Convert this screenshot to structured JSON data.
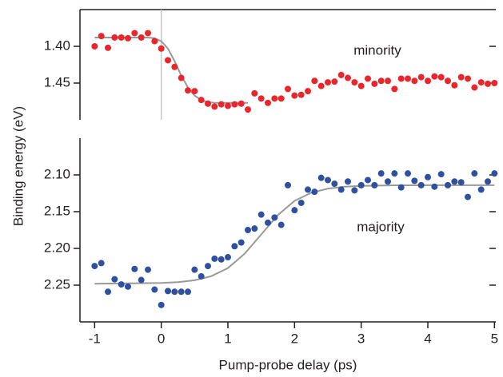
{
  "chart_data": [
    {
      "type": "scatter",
      "y_label": "Binding energy (eV)",
      "annotation": "minority",
      "invert_y": true,
      "xlim": [
        -1.22,
        5.02
      ],
      "ylim": [
        1.35,
        1.5
      ],
      "yticks": [
        {
          "value": 1.4,
          "label": "1.40"
        },
        1.45
      ],
      "vline_x": 0,
      "x": [
        -1.0,
        -0.9,
        -0.8,
        -0.7,
        -0.6,
        -0.5,
        -0.4,
        -0.3,
        -0.2,
        -0.1,
        0.0,
        0.1,
        0.2,
        0.3,
        0.4,
        0.5,
        0.6,
        0.7,
        0.8,
        0.9,
        1.0,
        1.1,
        1.2,
        1.3,
        1.4,
        1.5,
        1.6,
        1.7,
        1.8,
        1.9,
        2.0,
        2.1,
        2.2,
        2.3,
        2.4,
        2.5,
        2.6,
        2.7,
        2.8,
        2.9,
        3.0,
        3.1,
        3.2,
        3.3,
        3.4,
        3.5,
        3.6,
        3.7,
        3.8,
        3.9,
        4.0,
        4.1,
        4.2,
        4.3,
        4.4,
        4.5,
        4.6,
        4.7,
        4.8,
        4.9,
        5.0
      ],
      "series": [
        {
          "color": "#e8262b",
          "values": [
            1.4,
            1.386,
            1.402,
            1.388,
            1.388,
            1.389,
            1.382,
            1.388,
            1.382,
            1.393,
            1.403,
            1.419,
            1.428,
            1.443,
            1.46,
            1.461,
            1.473,
            1.478,
            1.482,
            1.479,
            1.481,
            1.479,
            1.478,
            1.486,
            1.464,
            1.471,
            1.477,
            1.471,
            1.471,
            1.458,
            1.467,
            1.466,
            1.461,
            1.447,
            1.454,
            1.449,
            1.448,
            1.439,
            1.443,
            1.449,
            1.454,
            1.444,
            1.451,
            1.447,
            1.447,
            1.458,
            1.444,
            1.444,
            1.447,
            1.442,
            1.447,
            1.441,
            1.442,
            1.447,
            1.453,
            1.442,
            1.444,
            1.456,
            1.449,
            1.451,
            1.45
          ]
        }
      ],
      "fit": {
        "color": "#999999",
        "x": [
          -1.0,
          -0.2,
          -0.1,
          0.0,
          0.1,
          0.2,
          0.3,
          0.4,
          0.5,
          0.6,
          0.7,
          0.8,
          1.3
        ],
        "values": [
          1.388,
          1.388,
          1.389,
          1.393,
          1.403,
          1.42,
          1.44,
          1.456,
          1.467,
          1.473,
          1.476,
          1.477,
          1.477
        ]
      }
    },
    {
      "type": "scatter",
      "x_label": "Pump-probe delay (ps)",
      "annotation": "majority",
      "invert_y": true,
      "xlim": [
        -1.22,
        5.02
      ],
      "xticks": [
        -1,
        0,
        1,
        2,
        3,
        4,
        5
      ],
      "ylim": [
        2.05,
        2.3
      ],
      "yticks": [
        {
          "value": 2.1,
          "label": "2.10"
        },
        2.15,
        {
          "value": 2.2,
          "label": "2.20"
        },
        2.25
      ],
      "x": [
        -1.0,
        -0.9,
        -0.8,
        -0.7,
        -0.6,
        -0.5,
        -0.4,
        -0.3,
        -0.2,
        -0.1,
        0.0,
        0.1,
        0.2,
        0.3,
        0.4,
        0.5,
        0.6,
        0.7,
        0.8,
        0.9,
        1.0,
        1.1,
        1.2,
        1.3,
        1.4,
        1.5,
        1.6,
        1.7,
        1.8,
        1.9,
        2.0,
        2.1,
        2.2,
        2.3,
        2.4,
        2.5,
        2.6,
        2.7,
        2.8,
        2.9,
        3.0,
        3.1,
        3.2,
        3.3,
        3.4,
        3.5,
        3.6,
        3.7,
        3.8,
        3.9,
        4.0,
        4.1,
        4.2,
        4.3,
        4.4,
        4.5,
        4.6,
        4.7,
        4.8,
        4.9,
        5.0
      ],
      "series": [
        {
          "color": "#2f4f9f",
          "values": [
            2.224,
            2.22,
            2.259,
            2.242,
            2.249,
            2.252,
            2.228,
            2.243,
            2.229,
            2.256,
            2.277,
            2.258,
            2.259,
            2.259,
            2.259,
            2.229,
            2.238,
            2.224,
            2.214,
            2.215,
            2.212,
            2.197,
            2.192,
            2.175,
            2.173,
            2.154,
            2.165,
            2.158,
            2.168,
            2.114,
            2.148,
            2.138,
            2.12,
            2.123,
            2.104,
            2.107,
            2.112,
            2.12,
            2.109,
            2.121,
            2.114,
            2.107,
            2.114,
            2.098,
            2.109,
            2.098,
            2.117,
            2.098,
            2.108,
            2.114,
            2.103,
            2.116,
            2.099,
            2.114,
            2.109,
            2.11,
            2.13,
            2.098,
            2.12,
            2.109,
            2.098
          ]
        }
      ],
      "fit": {
        "color": "#999999",
        "x": [
          -1.0,
          0.0,
          0.25,
          0.5,
          0.75,
          1.0,
          1.25,
          1.5,
          1.75,
          2.0,
          2.25,
          2.5,
          2.75,
          3.0,
          3.5,
          4.0,
          5.0
        ],
        "values": [
          2.248,
          2.2471,
          2.2459,
          2.2434,
          2.2378,
          2.2267,
          2.2074,
          2.181,
          2.1546,
          2.1353,
          2.1242,
          2.1186,
          2.116,
          2.1149,
          2.1141,
          2.114,
          2.114
        ]
      }
    }
  ]
}
